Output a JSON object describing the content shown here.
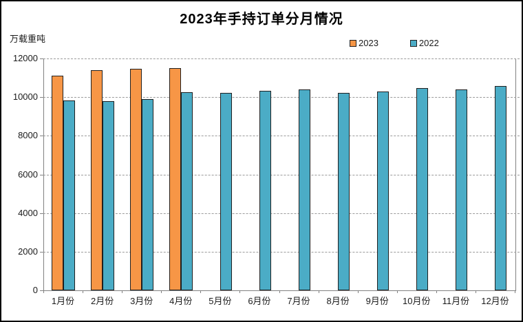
{
  "window": {
    "background": "#ffffff",
    "border_color": "#000000"
  },
  "chart_data": {
    "type": "bar",
    "title": "2023年手持订单分月情况",
    "ylabel": "万载重吨",
    "xlabel": "",
    "categories": [
      "1月份",
      "2月份",
      "3月份",
      "4月份",
      "5月份",
      "6月份",
      "7月份",
      "8月份",
      "9月份",
      "10月份",
      "11月份",
      "12月份"
    ],
    "series": [
      {
        "name": "2023",
        "color": "#F79646",
        "values": [
          11110,
          11380,
          11460,
          11510,
          null,
          null,
          null,
          null,
          null,
          null,
          null,
          null
        ]
      },
      {
        "name": "2022",
        "color": "#4BACC6",
        "values": [
          9830,
          9780,
          9890,
          10260,
          10230,
          10320,
          10390,
          10220,
          10290,
          10470,
          10390,
          10560
        ]
      }
    ],
    "ylim": [
      0,
      12000
    ],
    "yticks": [
      0,
      2000,
      4000,
      6000,
      8000,
      10000,
      12000
    ],
    "grid": "horizontal-dashed",
    "legend_position": "top-right",
    "bar_outline_color": "#1f1f1f",
    "axis_color": "#808080",
    "gridline_color": "#9a9a9a"
  }
}
